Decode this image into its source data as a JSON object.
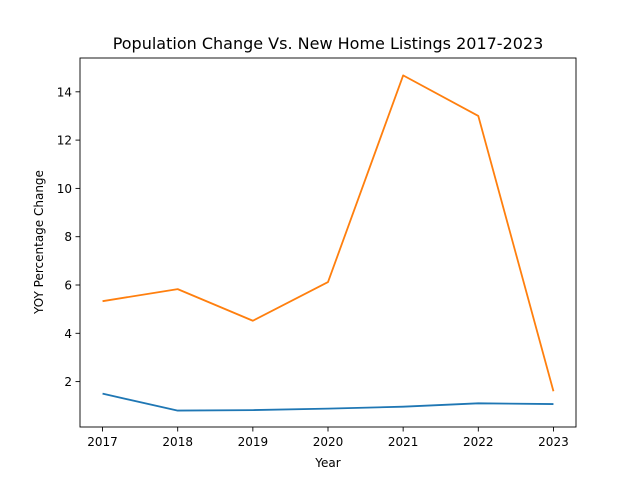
{
  "chart_data": {
    "type": "line",
    "title": "Population Change Vs. New Home Listings 2017-2023",
    "xlabel": "Year",
    "ylabel": "YOY Percentage Change",
    "x": [
      2017,
      2018,
      2019,
      2020,
      2021,
      2022,
      2023
    ],
    "xlim": [
      2016.7,
      2023.3
    ],
    "ylim": [
      0.12,
      15.4
    ],
    "xticks": [
      "2017",
      "2018",
      "2019",
      "2020",
      "2021",
      "2022",
      "2023"
    ],
    "yticks": [
      2,
      4,
      6,
      8,
      10,
      12,
      14
    ],
    "grid": false,
    "legend": "none",
    "series": [
      {
        "color": "#1f77b4",
        "values": [
          1.5,
          0.8,
          0.82,
          0.88,
          0.96,
          1.1,
          1.07
        ]
      },
      {
        "color": "#ff7f0e",
        "values": [
          5.33,
          5.83,
          4.52,
          6.12,
          14.68,
          13.0,
          1.6
        ]
      }
    ]
  }
}
